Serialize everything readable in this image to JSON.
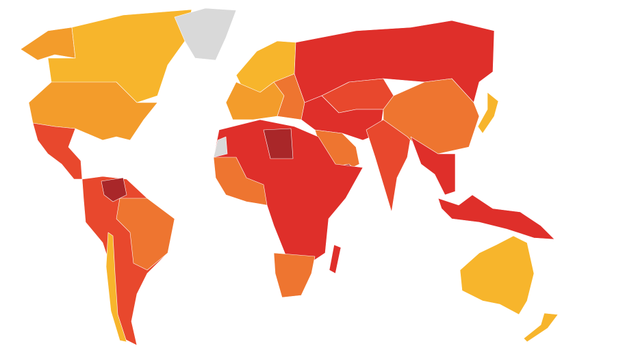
{
  "map": {
    "type": "choropleth world map",
    "palette": {
      "very_clean": "#F7B52C",
      "clean": "#F39C2B",
      "moderate": "#EE7530",
      "corrupt": "#E8482D",
      "very_corrupt": "#DF2F2A",
      "most_corrupt": "#A92729",
      "no_data": "#D9D9D9"
    },
    "regions": [
      {
        "name": "canada",
        "class": "very_clean"
      },
      {
        "name": "alaska",
        "class": "clean"
      },
      {
        "name": "greenland",
        "class": "no_data"
      },
      {
        "name": "united-states",
        "class": "clean"
      },
      {
        "name": "mexico-central-america",
        "class": "corrupt"
      },
      {
        "name": "south-america",
        "class": "corrupt"
      },
      {
        "name": "brazil",
        "class": "moderate"
      },
      {
        "name": "venezuela",
        "class": "most_corrupt"
      },
      {
        "name": "chile",
        "class": "very_clean"
      },
      {
        "name": "northern-europe",
        "class": "very_clean"
      },
      {
        "name": "western-europe",
        "class": "clean"
      },
      {
        "name": "eastern-europe",
        "class": "moderate"
      },
      {
        "name": "russia",
        "class": "very_corrupt"
      },
      {
        "name": "kazakhstan-central-asia",
        "class": "corrupt"
      },
      {
        "name": "middle-east",
        "class": "very_corrupt"
      },
      {
        "name": "arabian-peninsula",
        "class": "moderate"
      },
      {
        "name": "yemen",
        "class": "most_corrupt"
      },
      {
        "name": "africa",
        "class": "very_corrupt"
      },
      {
        "name": "west-africa",
        "class": "moderate"
      },
      {
        "name": "libya",
        "class": "most_corrupt"
      },
      {
        "name": "western-sahara",
        "class": "no_data"
      },
      {
        "name": "southern-africa",
        "class": "moderate"
      },
      {
        "name": "madagascar",
        "class": "very_corrupt"
      },
      {
        "name": "india",
        "class": "corrupt"
      },
      {
        "name": "china",
        "class": "moderate"
      },
      {
        "name": "southeast-asia",
        "class": "very_corrupt"
      },
      {
        "name": "japan",
        "class": "very_clean"
      },
      {
        "name": "indonesia-png",
        "class": "very_corrupt"
      },
      {
        "name": "australia",
        "class": "very_clean"
      },
      {
        "name": "new-zealand",
        "class": "very_clean"
      }
    ]
  }
}
